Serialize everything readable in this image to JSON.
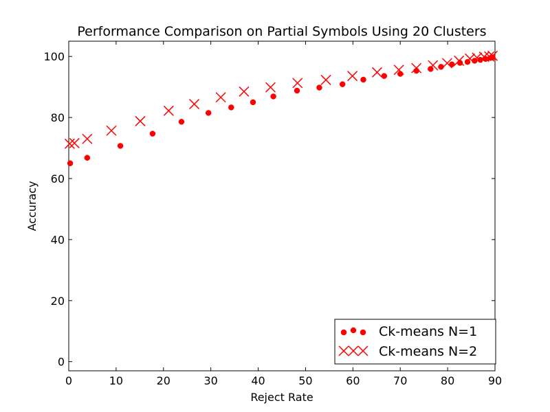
{
  "chart_data": {
    "type": "scatter",
    "title": "Performance Comparison on Partial Symbols Using 20 Clusters",
    "xlabel": "Reject Rate",
    "ylabel": "Accuracy",
    "xlim": [
      0,
      90
    ],
    "ylim": [
      -3,
      105
    ],
    "xticks": [
      "0",
      "10",
      "20",
      "30",
      "40",
      "50",
      "60",
      "70",
      "80",
      "90"
    ],
    "yticks": [
      "0",
      "20",
      "40",
      "60",
      "80",
      "100"
    ],
    "grid": false,
    "legend_position": "lower-right",
    "series": [
      {
        "name": "Ck-means N=1",
        "marker": "circle",
        "color": "#ff0000",
        "points": [
          [
            0.3,
            65.0
          ],
          [
            3.9,
            66.8
          ],
          [
            10.9,
            70.7
          ],
          [
            17.7,
            74.7
          ],
          [
            23.8,
            78.6
          ],
          [
            29.5,
            81.5
          ],
          [
            34.3,
            83.3
          ],
          [
            38.9,
            85.0
          ],
          [
            43.2,
            86.9
          ],
          [
            48.2,
            88.8
          ],
          [
            52.9,
            89.8
          ],
          [
            57.8,
            90.9
          ],
          [
            62.2,
            92.4
          ],
          [
            66.6,
            93.6
          ],
          [
            70.0,
            94.3
          ],
          [
            73.4,
            95.3
          ],
          [
            76.4,
            95.9
          ],
          [
            78.6,
            96.6
          ],
          [
            80.9,
            97.4
          ],
          [
            82.6,
            97.9
          ],
          [
            84.2,
            98.2
          ],
          [
            85.7,
            98.6
          ],
          [
            86.9,
            98.9
          ],
          [
            88.0,
            99.2
          ],
          [
            89.0,
            99.5
          ],
          [
            89.5,
            99.7
          ]
        ]
      },
      {
        "name": "Ck-means N=2",
        "marker": "x",
        "color": "#ff0000",
        "points": [
          [
            0.2,
            71.4
          ],
          [
            1.2,
            71.6
          ],
          [
            3.9,
            73.0
          ],
          [
            9.0,
            75.7
          ],
          [
            15.1,
            78.8
          ],
          [
            21.1,
            82.2
          ],
          [
            26.5,
            84.4
          ],
          [
            32.1,
            86.6
          ],
          [
            37.0,
            88.5
          ],
          [
            42.6,
            89.9
          ],
          [
            48.3,
            91.3
          ],
          [
            54.3,
            92.3
          ],
          [
            59.9,
            93.6
          ],
          [
            65.1,
            94.8
          ],
          [
            69.7,
            95.6
          ],
          [
            73.4,
            96.2
          ],
          [
            76.9,
            97.1
          ],
          [
            79.9,
            97.8
          ],
          [
            82.4,
            98.6
          ],
          [
            84.7,
            99.3
          ],
          [
            86.2,
            99.6
          ],
          [
            87.7,
            99.9
          ],
          [
            88.8,
            100.0
          ],
          [
            89.5,
            100.2
          ]
        ]
      }
    ]
  }
}
